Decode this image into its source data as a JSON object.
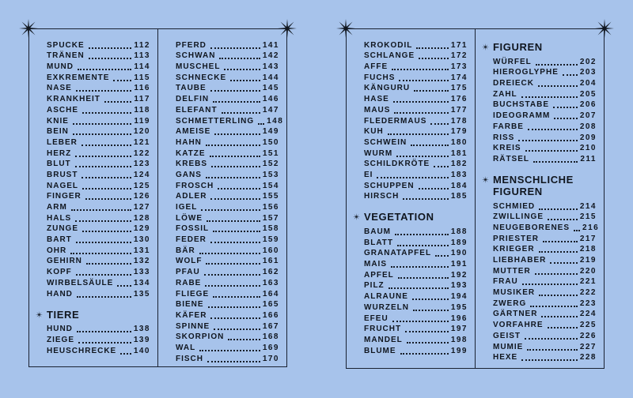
{
  "colors": {
    "page_background": "#a7c3eb",
    "ink": "#10161f",
    "border": "#1a2232"
  },
  "decorations": {
    "corner_star": "eight-pointed-star",
    "heading_bullet": "eight-pointed-star"
  },
  "spread": {
    "pages": [
      {
        "columns": [
          {
            "sections": [
              {
                "heading": null,
                "items": [
                  {
                    "label": "SPUCKE",
                    "page": "112"
                  },
                  {
                    "label": "TRÄNEN",
                    "page": "113"
                  },
                  {
                    "label": "MUND",
                    "page": "114"
                  },
                  {
                    "label": "EXKREMENTE",
                    "page": "115"
                  },
                  {
                    "label": "NASE",
                    "page": "116"
                  },
                  {
                    "label": "KRANKHEIT",
                    "page": "117"
                  },
                  {
                    "label": "ASCHE",
                    "page": "118"
                  },
                  {
                    "label": "KNIE",
                    "page": "119"
                  },
                  {
                    "label": "BEIN",
                    "page": "120"
                  },
                  {
                    "label": "LEBER",
                    "page": "121"
                  },
                  {
                    "label": "HERZ",
                    "page": "122"
                  },
                  {
                    "label": "BLUT",
                    "page": "123"
                  },
                  {
                    "label": "BRUST",
                    "page": "124"
                  },
                  {
                    "label": "NAGEL",
                    "page": "125"
                  },
                  {
                    "label": "FINGER",
                    "page": "126"
                  },
                  {
                    "label": "ARM",
                    "page": "127"
                  },
                  {
                    "label": "HALS",
                    "page": "128"
                  },
                  {
                    "label": "ZUNGE",
                    "page": "129"
                  },
                  {
                    "label": "BART",
                    "page": "130"
                  },
                  {
                    "label": "OHR",
                    "page": "131"
                  },
                  {
                    "label": "GEHIRN",
                    "page": "132"
                  },
                  {
                    "label": "KOPF",
                    "page": "133"
                  },
                  {
                    "label": "WIRBELSÄULE",
                    "page": "134"
                  },
                  {
                    "label": "HAND",
                    "page": "135"
                  }
                ]
              },
              {
                "heading": "TIERE",
                "items": [
                  {
                    "label": "HUND",
                    "page": "138"
                  },
                  {
                    "label": "ZIEGE",
                    "page": "139"
                  },
                  {
                    "label": "HEUSCHRECKE",
                    "page": "140"
                  }
                ]
              }
            ]
          },
          {
            "sections": [
              {
                "heading": null,
                "items": [
                  {
                    "label": "PFERD",
                    "page": "141"
                  },
                  {
                    "label": "SCHWAN",
                    "page": "142"
                  },
                  {
                    "label": "MUSCHEL",
                    "page": "143"
                  },
                  {
                    "label": "SCHNECKE",
                    "page": "144"
                  },
                  {
                    "label": "TAUBE",
                    "page": "145"
                  },
                  {
                    "label": "DELFIN",
                    "page": "146"
                  },
                  {
                    "label": "ELEFANT",
                    "page": "147"
                  },
                  {
                    "label": "SCHMETTERLING",
                    "page": "148"
                  },
                  {
                    "label": "AMEISE",
                    "page": "149"
                  },
                  {
                    "label": "HAHN",
                    "page": "150"
                  },
                  {
                    "label": "KATZE",
                    "page": "151"
                  },
                  {
                    "label": "KREBS",
                    "page": "152"
                  },
                  {
                    "label": "GANS",
                    "page": "153"
                  },
                  {
                    "label": "FROSCH",
                    "page": "154"
                  },
                  {
                    "label": "ADLER",
                    "page": "155"
                  },
                  {
                    "label": "IGEL",
                    "page": "156"
                  },
                  {
                    "label": "LÖWE",
                    "page": "157"
                  },
                  {
                    "label": "FOSSIL",
                    "page": "158"
                  },
                  {
                    "label": "FEDER",
                    "page": "159"
                  },
                  {
                    "label": "BÄR",
                    "page": "160"
                  },
                  {
                    "label": "WOLF",
                    "page": "161"
                  },
                  {
                    "label": "PFAU",
                    "page": "162"
                  },
                  {
                    "label": "RABE",
                    "page": "163"
                  },
                  {
                    "label": "FLIEGE",
                    "page": "164"
                  },
                  {
                    "label": "BIENE",
                    "page": "165"
                  },
                  {
                    "label": "KÄFER",
                    "page": "166"
                  },
                  {
                    "label": "SPINNE",
                    "page": "167"
                  },
                  {
                    "label": "SKORPION",
                    "page": "168"
                  },
                  {
                    "label": "WAL",
                    "page": "169"
                  },
                  {
                    "label": "FISCH",
                    "page": "170"
                  }
                ]
              }
            ]
          }
        ]
      },
      {
        "columns": [
          {
            "sections": [
              {
                "heading": null,
                "items": [
                  {
                    "label": "KROKODIL",
                    "page": "171"
                  },
                  {
                    "label": "SCHLANGE",
                    "page": "172"
                  },
                  {
                    "label": "AFFE",
                    "page": "173"
                  },
                  {
                    "label": "FUCHS",
                    "page": "174"
                  },
                  {
                    "label": "KÄNGURU",
                    "page": "175"
                  },
                  {
                    "label": "HASE",
                    "page": "176"
                  },
                  {
                    "label": "MAUS",
                    "page": "177"
                  },
                  {
                    "label": "FLEDERMAUS",
                    "page": "178"
                  },
                  {
                    "label": "KUH",
                    "page": "179"
                  },
                  {
                    "label": "SCHWEIN",
                    "page": "180"
                  },
                  {
                    "label": "WURM",
                    "page": "181"
                  },
                  {
                    "label": "SCHILDKRÖTE",
                    "page": "182"
                  },
                  {
                    "label": "EI",
                    "page": "183"
                  },
                  {
                    "label": "SCHUPPEN",
                    "page": "184"
                  },
                  {
                    "label": "HIRSCH",
                    "page": "185"
                  }
                ]
              },
              {
                "heading": "VEGETATION",
                "items": [
                  {
                    "label": "BAUM",
                    "page": "188"
                  },
                  {
                    "label": "BLATT",
                    "page": "189"
                  },
                  {
                    "label": "GRANATAPFEL",
                    "page": "190"
                  },
                  {
                    "label": "MAIS",
                    "page": "191"
                  },
                  {
                    "label": "APFEL",
                    "page": "192"
                  },
                  {
                    "label": "PILZ",
                    "page": "193"
                  },
                  {
                    "label": "ALRAUNE",
                    "page": "194"
                  },
                  {
                    "label": "WURZELN",
                    "page": "195"
                  },
                  {
                    "label": "EFEU",
                    "page": "196"
                  },
                  {
                    "label": "FRUCHT",
                    "page": "197"
                  },
                  {
                    "label": "MANDEL",
                    "page": "198"
                  },
                  {
                    "label": "BLUME",
                    "page": "199"
                  }
                ]
              }
            ]
          },
          {
            "sections": [
              {
                "heading": "FIGUREN",
                "items": [
                  {
                    "label": "WÜRFEL",
                    "page": "202"
                  },
                  {
                    "label": "HIEROGLYPHE",
                    "page": "203"
                  },
                  {
                    "label": "DREIECK",
                    "page": "204"
                  },
                  {
                    "label": "ZAHL",
                    "page": "205"
                  },
                  {
                    "label": "BUCHSTABE",
                    "page": "206"
                  },
                  {
                    "label": "IDEOGRAMM",
                    "page": "207"
                  },
                  {
                    "label": "FARBE",
                    "page": "208"
                  },
                  {
                    "label": "RISS",
                    "page": "209"
                  },
                  {
                    "label": "KREIS",
                    "page": "210"
                  },
                  {
                    "label": "RÄTSEL",
                    "page": "211"
                  }
                ]
              },
              {
                "heading": "MENSCHLICHE FIGUREN",
                "items": [
                  {
                    "label": "SCHMIED",
                    "page": "214"
                  },
                  {
                    "label": "ZWILLINGE",
                    "page": "215"
                  },
                  {
                    "label": "NEUGEBORENES",
                    "page": "216"
                  },
                  {
                    "label": "PRIESTER",
                    "page": "217"
                  },
                  {
                    "label": "KRIEGER",
                    "page": "218"
                  },
                  {
                    "label": "LIEBHABER",
                    "page": "219"
                  },
                  {
                    "label": "MUTTER",
                    "page": "220"
                  },
                  {
                    "label": "FRAU",
                    "page": "221"
                  },
                  {
                    "label": "MUSIKER",
                    "page": "222"
                  },
                  {
                    "label": "ZWERG",
                    "page": "223"
                  },
                  {
                    "label": "GÄRTNER",
                    "page": "224"
                  },
                  {
                    "label": "VORFAHRE",
                    "page": "225"
                  },
                  {
                    "label": "GEIST",
                    "page": "226"
                  },
                  {
                    "label": "MUMIE",
                    "page": "227"
                  },
                  {
                    "label": "HEXE",
                    "page": "228"
                  }
                ]
              }
            ]
          }
        ]
      }
    ]
  }
}
